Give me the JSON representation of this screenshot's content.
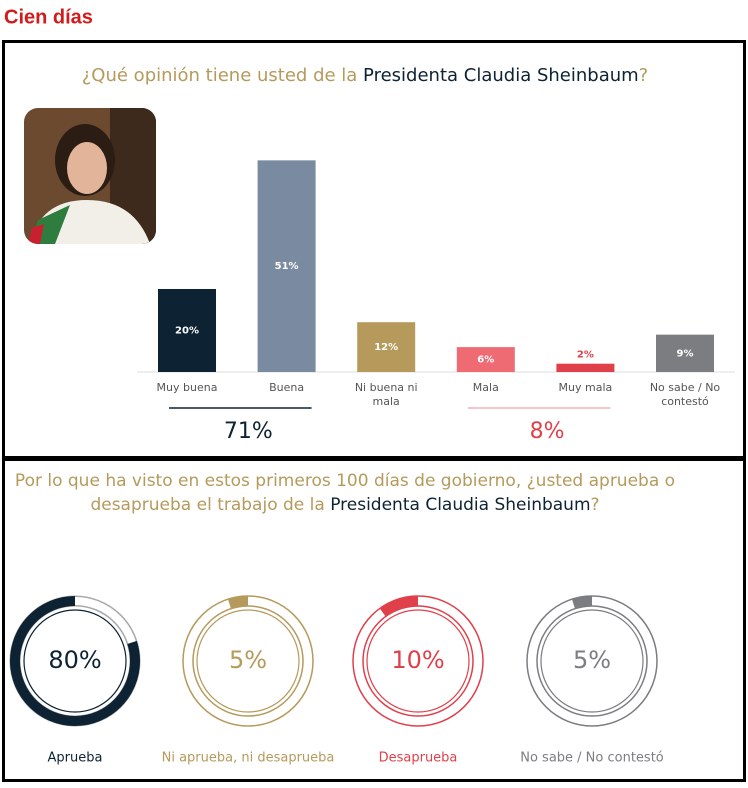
{
  "header": {
    "title": "Cien días"
  },
  "chart_data": [
    {
      "type": "bar",
      "title": [
        "¿Qué opinión tiene  usted de la ",
        "Presidenta Claudia Sheinbaum",
        "?"
      ],
      "categories": [
        "Muy buena",
        "Buena",
        "Ni buena ni mala",
        "Mala",
        "Muy mala",
        "No sabe / No contestó"
      ],
      "values": [
        20,
        51,
        12,
        6,
        2,
        9
      ],
      "value_labels": [
        "20%",
        "51%",
        "12%",
        "6%",
        "2%",
        "9%"
      ],
      "colors": [
        "#0d2233",
        "#7a8aa0",
        "#b59a5b",
        "#ee6b73",
        "#e0404a",
        "#7b7d80"
      ],
      "group_totals": [
        {
          "value": 71,
          "label": "71%",
          "color": "#0d2233"
        },
        {
          "value": 8,
          "label": "8%",
          "color": "#e0404a"
        }
      ]
    },
    {
      "type": "ring",
      "title": [
        "Por lo que ha visto en estos primeros 100 días de gobierno, ¿usted aprueba o",
        "desaprueba el trabajo de la ",
        "Presidenta Claudia Sheinbaum",
        "?"
      ],
      "categories": [
        "Aprueba",
        "Ni aprueba, ni desaprueba",
        "Desaprueba",
        "No sabe / No contestó"
      ],
      "values": [
        80,
        5,
        10,
        5
      ],
      "value_labels": [
        "80%",
        "5%",
        "10%",
        "5%"
      ],
      "colors": [
        "#0d2233",
        "#b59a5b",
        "#e0404a",
        "#7b7d80"
      ]
    }
  ]
}
